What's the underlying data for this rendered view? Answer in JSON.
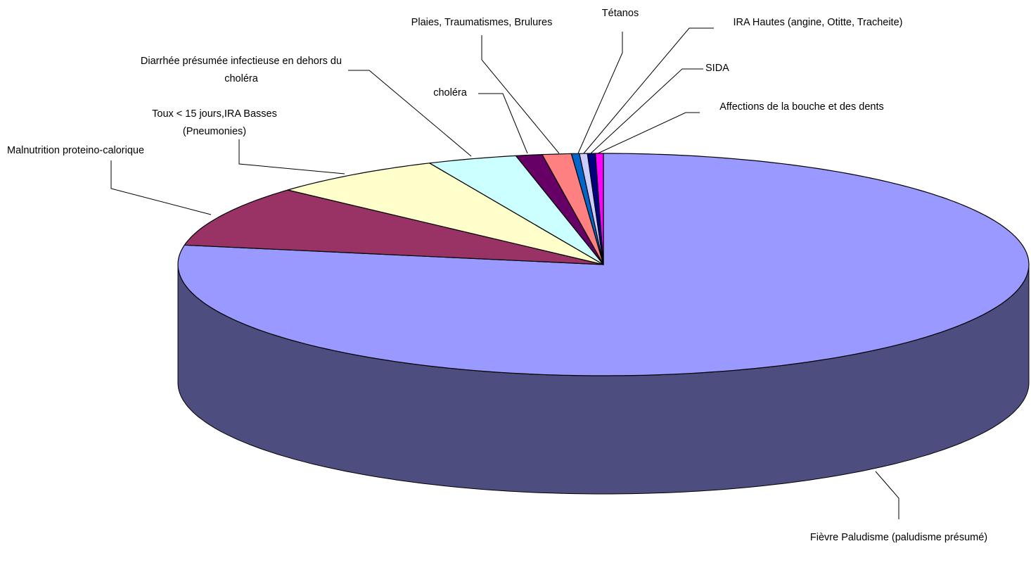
{
  "chart_data": {
    "type": "pie",
    "categories": [
      "Fièvre Paludisme (paludisme présumé)",
      "Malnutrition proteino-calorique",
      "Toux < 15 jours,IRA Basses (Pneumonies)",
      "Diarrhée présumée infectieuse en dehors du choléra",
      "choléra",
      "Plaies, Traumatismes, Brulures",
      "Tétanos",
      "IRA Hautes (angine, Otitte, Tracheite)",
      "SIDA",
      "Affections de la bouche et des dents"
    ],
    "values": [
      77.8,
      8.9,
      6.6,
      3.4,
      1.0,
      1.1,
      0.3,
      0.3,
      0.3,
      0.3
    ],
    "colors": [
      "#9999ff",
      "#993366",
      "#ffffcc",
      "#ccffff",
      "#660066",
      "#ff8080",
      "#0066cc",
      "#ccccff",
      "#000080",
      "#ff00ff"
    ]
  }
}
